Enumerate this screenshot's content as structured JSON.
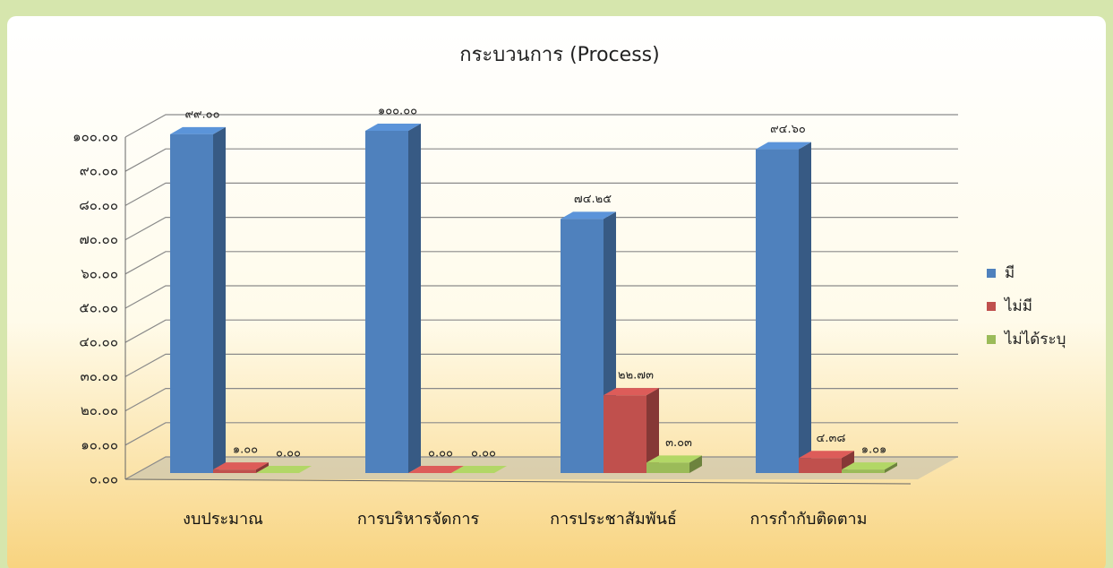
{
  "chart_data": {
    "type": "bar",
    "title": "กระบวนการ (Process)",
    "categories": [
      "งบประมาณ",
      "การบริหารจัดการ",
      "การประชาสัมพันธ์",
      "การกำกับติดตาม"
    ],
    "series": [
      {
        "name": "มี",
        "color": "#4f81bd",
        "values": [
          99.0,
          100.0,
          74.25,
          94.6
        ],
        "value_labels": [
          "๙๙.๐๐",
          "๑๐๐.๐๐",
          "๗๔.๒๕",
          "๙๔.๖๐"
        ]
      },
      {
        "name": "ไม่มี",
        "color": "#c0504d",
        "values": [
          1.0,
          0.0,
          22.73,
          4.38
        ],
        "value_labels": [
          "๑.๐๐",
          "๐.๐๐",
          "๒๒.๗๓",
          "๔.๓๘"
        ]
      },
      {
        "name": "ไม่ได้ระบุ",
        "color": "#9bbb59",
        "values": [
          0.0,
          0.0,
          3.03,
          1.01
        ],
        "value_labels": [
          "๐.๐๐",
          "๐.๐๐",
          "๓.๐๓",
          "๑.๐๑"
        ]
      }
    ],
    "ylim": [
      0,
      100
    ],
    "yticks": [
      {
        "value": 0,
        "label": "๐.๐๐"
      },
      {
        "value": 10,
        "label": "๑๐.๐๐"
      },
      {
        "value": 20,
        "label": "๒๐.๐๐"
      },
      {
        "value": 30,
        "label": "๓๐.๐๐"
      },
      {
        "value": 40,
        "label": "๔๐.๐๐"
      },
      {
        "value": 50,
        "label": "๕๐.๐๐"
      },
      {
        "value": 60,
        "label": "๖๐.๐๐"
      },
      {
        "value": 70,
        "label": "๗๐.๐๐"
      },
      {
        "value": 80,
        "label": "๘๐.๐๐"
      },
      {
        "value": 90,
        "label": "๙๐.๐๐"
      },
      {
        "value": 100,
        "label": "๑๐๐.๐๐"
      }
    ],
    "grid": true,
    "legend": "right"
  }
}
